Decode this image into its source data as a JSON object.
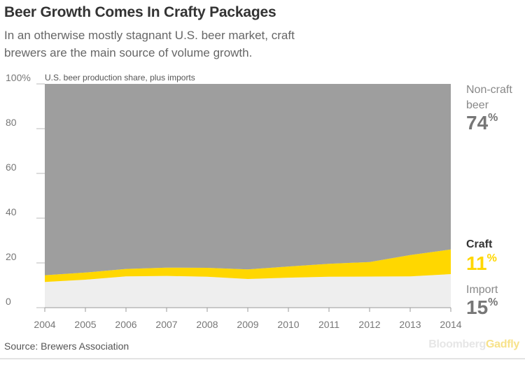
{
  "header": {
    "title": "Beer Growth Comes In Crafty Packages",
    "subtitle": "In an otherwise mostly stagnant U.S. beer market, craft brewers are the main source of volume growth."
  },
  "footer": {
    "source": "Source: Brewers Association",
    "brand_part1": "Bloomberg",
    "brand_part2": "Gadfly"
  },
  "annotations": {
    "noncraft_name_line1": "Non-craft",
    "noncraft_name_line2": "beer",
    "noncraft_value": "74",
    "craft_name": "Craft",
    "craft_value": "11",
    "import_name": "Import",
    "import_value": "15",
    "pct_symbol": "%"
  },
  "chart_data": {
    "type": "area",
    "stacked": true,
    "normalized": true,
    "note": "U.S. beer production share, plus imports",
    "x": [
      "2004",
      "2005",
      "2006",
      "2007",
      "2008",
      "2009",
      "2010",
      "2011",
      "2012",
      "2013",
      "2014"
    ],
    "series": [
      {
        "name": "Import",
        "color": "#eeeeee",
        "values": [
          11.5,
          12.5,
          14,
          14.2,
          13.8,
          12.8,
          13.4,
          13.8,
          13.9,
          14,
          15
        ]
      },
      {
        "name": "Craft",
        "color": "#ffd700",
        "values": [
          3,
          3.2,
          3.3,
          3.7,
          4,
          4.3,
          5,
          5.8,
          6.5,
          9.5,
          11
        ]
      },
      {
        "name": "Non-craft beer",
        "color": "#9e9e9e",
        "values": [
          85.5,
          84.3,
          82.7,
          82.1,
          82.2,
          82.9,
          81.6,
          80.4,
          79.6,
          76.5,
          74
        ]
      }
    ],
    "y_ticks": [
      "100%",
      "80",
      "60",
      "40",
      "20",
      "0"
    ],
    "y_tick_values": [
      100,
      80,
      60,
      40,
      20,
      0
    ],
    "ylim": [
      0,
      100
    ],
    "grid": false
  }
}
